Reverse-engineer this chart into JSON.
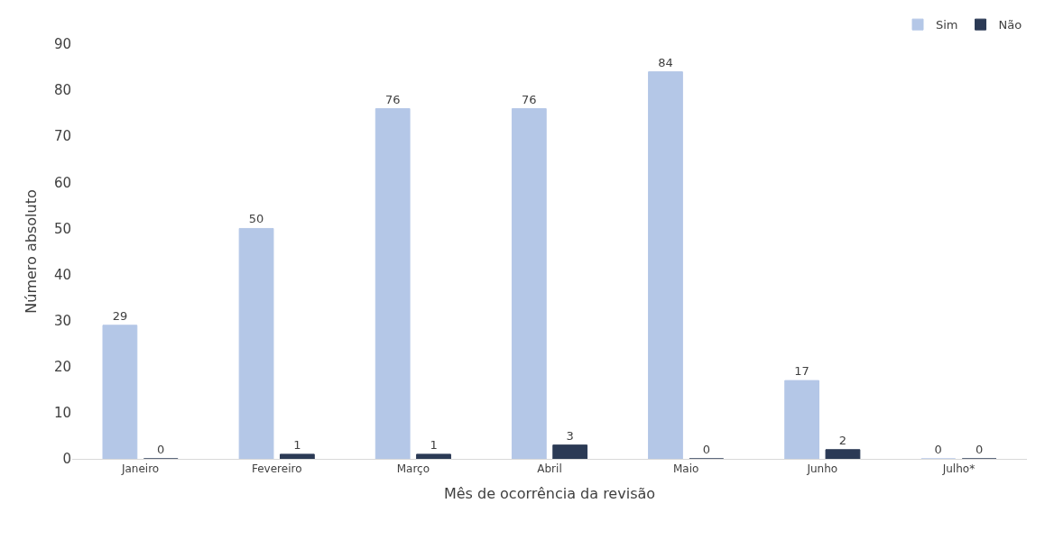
{
  "chart_data": {
    "type": "bar",
    "xlabel": "Mês de ocorrência da revisão",
    "ylabel": "Número absoluto",
    "categories": [
      "Janeiro",
      "Fevereiro",
      "Março",
      "Abril",
      "Maio",
      "Junho",
      "Julho*"
    ],
    "series": [
      {
        "name": "Sim",
        "color": "#b4c7e7",
        "values": [
          29,
          50,
          76,
          76,
          84,
          17,
          0
        ]
      },
      {
        "name": "Não",
        "color": "#2b3a55",
        "values": [
          0,
          1,
          1,
          3,
          0,
          2,
          0
        ]
      }
    ],
    "ylim": [
      0,
      90
    ],
    "yticks": [
      0,
      10,
      20,
      30,
      40,
      50,
      60,
      70,
      80,
      90
    ],
    "grid": false,
    "legend": "top right",
    "data_labels": true
  }
}
